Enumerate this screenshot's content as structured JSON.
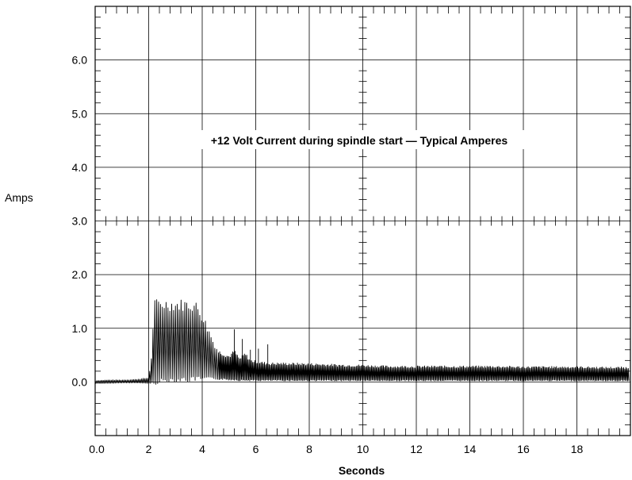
{
  "chart_data": {
    "type": "line",
    "title": "+12 Volt Current during spindle start — Typical Amperes",
    "xlabel": "Seconds",
    "ylabel": "Amps",
    "xlim": [
      0,
      20
    ],
    "ylim": [
      -1,
      7
    ],
    "grid": true,
    "x_ticks": [
      0,
      2,
      4,
      6,
      8,
      10,
      12,
      14,
      16,
      18
    ],
    "x_tick_labels": [
      "0.0",
      "2",
      "4",
      "6",
      "8",
      "10",
      "12",
      "14",
      "16",
      "18"
    ],
    "y_ticks": [
      0,
      1,
      2,
      3,
      4,
      5,
      6
    ],
    "y_tick_labels": [
      "0.0",
      "1.0",
      "2.0",
      "3.0",
      "4.0",
      "5.0",
      "6.0"
    ],
    "series": [
      {
        "x": [
          0.0,
          0.5,
          1.0,
          1.5,
          2.0,
          2.1,
          2.2,
          2.4,
          2.6,
          2.8,
          3.0,
          3.2,
          3.4,
          3.6,
          3.8,
          3.9,
          4.0,
          4.1,
          4.2,
          4.3,
          4.4,
          4.5,
          4.6,
          4.8,
          5.0,
          5.2,
          5.4,
          5.6,
          5.8,
          6.0,
          6.2,
          6.5,
          7.0,
          8.0,
          9.0,
          10.0,
          11.0,
          12.0,
          13.0,
          14.0,
          15.0,
          16.0,
          17.0,
          18.0,
          19.0,
          19.95
        ],
        "peak": [
          0.03,
          0.04,
          0.04,
          0.05,
          0.08,
          0.45,
          1.55,
          1.55,
          1.56,
          1.55,
          1.54,
          1.55,
          1.55,
          1.54,
          1.5,
          1.4,
          1.3,
          1.2,
          1.05,
          0.95,
          0.8,
          0.7,
          0.6,
          0.55,
          0.5,
          0.6,
          0.45,
          0.55,
          0.42,
          0.4,
          0.38,
          0.36,
          0.36,
          0.35,
          0.33,
          0.32,
          0.3,
          0.3,
          0.3,
          0.3,
          0.3,
          0.29,
          0.29,
          0.29,
          0.28,
          0.28
        ],
        "trough": [
          -0.03,
          -0.03,
          -0.02,
          -0.02,
          -0.03,
          -0.05,
          -0.05,
          -0.04,
          -0.02,
          0.0,
          0.0,
          0.0,
          0.0,
          0.0,
          0.02,
          0.02,
          0.02,
          0.03,
          0.03,
          0.04,
          0.04,
          0.04,
          0.04,
          0.04,
          0.03,
          0.03,
          0.02,
          0.02,
          0.02,
          0.02,
          0.02,
          0.02,
          0.02,
          0.02,
          0.02,
          0.02,
          0.02,
          0.02,
          0.02,
          0.02,
          0.02,
          0.02,
          0.02,
          0.02,
          0.02,
          0.02
        ],
        "spikes": [
          [
            5.2,
            0.98
          ],
          [
            5.5,
            0.8
          ],
          [
            5.8,
            0.6
          ],
          [
            6.1,
            0.62
          ],
          [
            6.45,
            0.7
          ]
        ]
      }
    ]
  }
}
